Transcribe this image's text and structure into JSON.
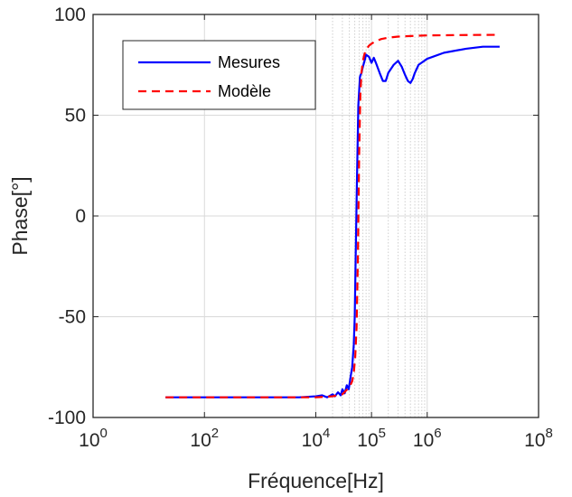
{
  "chart_data": {
    "type": "line",
    "xlabel": "Fréquence[Hz]",
    "ylabel": "Phase[°]",
    "xscale": "log",
    "xlim": [
      1,
      100000000
    ],
    "ylim": [
      -100,
      100
    ],
    "grid": true,
    "legend_position": "top-left",
    "x_ticks": [
      {
        "value": 1,
        "base": "10",
        "exp": "0"
      },
      {
        "value": 100,
        "base": "10",
        "exp": "2"
      },
      {
        "value": 10000,
        "base": "10",
        "exp": "4"
      },
      {
        "value": 100000,
        "base": "10",
        "exp": "5"
      },
      {
        "value": 1000000,
        "base": "10",
        "exp": "6"
      },
      {
        "value": 100000000,
        "base": "10",
        "exp": "8"
      }
    ],
    "y_ticks": [
      {
        "value": 100,
        "label": "100"
      },
      {
        "value": 50,
        "label": "50"
      },
      {
        "value": 0,
        "label": "0"
      },
      {
        "value": -50,
        "label": "-50"
      },
      {
        "value": -100,
        "label": "-100"
      }
    ],
    "series": [
      {
        "name": "Mesures",
        "color": "#0000ff",
        "dash": "solid",
        "x": [
          20,
          100,
          1000,
          5000,
          10000,
          13000,
          16000,
          20000,
          22000,
          25000,
          28000,
          30000,
          33000,
          36000,
          39000,
          42000,
          45000,
          48000,
          50000,
          52000,
          55000,
          58000,
          62000,
          66000,
          70000,
          75000,
          80000,
          90000,
          100000,
          110000,
          120000,
          140000,
          160000,
          180000,
          200000,
          250000,
          300000,
          350000,
          400000,
          450000,
          500000,
          550000,
          600000,
          700000,
          1000000,
          2000000,
          5000000,
          10000000,
          20000000
        ],
        "y": [
          -90,
          -90,
          -90,
          -90,
          -89.5,
          -89,
          -90,
          -88.5,
          -89.5,
          -87.5,
          -89,
          -86,
          -88,
          -84,
          -86,
          -80,
          -75,
          -64,
          -50,
          -20,
          20,
          55,
          69,
          71,
          74,
          77,
          80,
          79,
          76,
          78.5,
          76,
          71,
          67,
          67,
          71,
          75,
          77,
          74,
          70,
          67,
          66,
          68,
          71,
          75,
          78,
          81,
          83,
          84,
          84
        ]
      },
      {
        "name": "Modèle",
        "color": "#ff0000",
        "dash": "dashed",
        "x": [
          20,
          100,
          1000,
          10000,
          20000,
          30000,
          40000,
          45000,
          48000,
          51000,
          54000,
          57000,
          60000,
          63000,
          66000,
          70000,
          75000,
          80000,
          90000,
          100000,
          120000,
          150000,
          200000,
          300000,
          500000,
          1000000,
          5000000,
          20000000
        ],
        "y": [
          -90,
          -90,
          -90,
          -90,
          -89.5,
          -88.5,
          -85,
          -82,
          -78,
          -70,
          -55,
          -20,
          30,
          60,
          71,
          77,
          80.5,
          82.5,
          84.5,
          85.5,
          86.8,
          87.8,
          88.5,
          89,
          89.3,
          89.6,
          89.8,
          89.9
        ]
      }
    ]
  }
}
